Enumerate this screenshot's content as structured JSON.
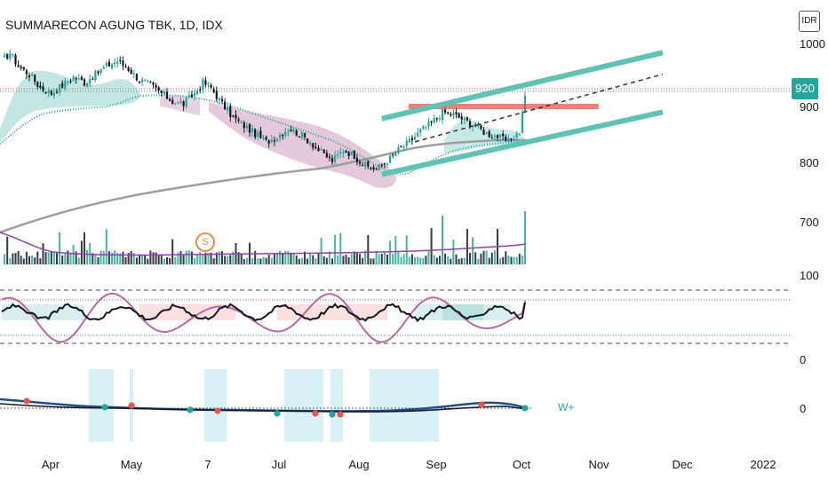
{
  "header": {
    "title": "SUMMARECON AGUNG TBK, 1D, IDX",
    "currency": "IDR"
  },
  "price_axis": {
    "labels": [
      "1000",
      "900",
      "800",
      "700"
    ],
    "last_price": "920"
  },
  "indicator_axes": {
    "volume_label": "100",
    "oscillator_label": "0",
    "lower_label": "0"
  },
  "markers": {
    "s_badge": "S",
    "signal_text": "W+"
  },
  "chart_data": {
    "type": "candlestick",
    "title": "SUMMARECON AGUNG TBK, 1D, IDX",
    "x_tick_labels": [
      "Apr",
      "May",
      "7",
      "Jul",
      "Aug",
      "Sep",
      "Oct",
      "Nov",
      "Dec",
      "2022"
    ],
    "y_tick_labels": [
      "1000",
      "900",
      "800",
      "700"
    ],
    "ylim": [
      710,
      1035
    ],
    "last_price": 920,
    "close_path": [
      [
        0,
        985
      ],
      [
        3,
        1000
      ],
      [
        6,
        975
      ],
      [
        10,
        960
      ],
      [
        14,
        935
      ],
      [
        18,
        925
      ],
      [
        22,
        940
      ],
      [
        26,
        955
      ],
      [
        30,
        945
      ],
      [
        34,
        960
      ],
      [
        38,
        975
      ],
      [
        42,
        985
      ],
      [
        46,
        970
      ],
      [
        50,
        950
      ],
      [
        54,
        940
      ],
      [
        58,
        925
      ],
      [
        62,
        910
      ],
      [
        66,
        905
      ],
      [
        70,
        925
      ],
      [
        73,
        945
      ],
      [
        76,
        935
      ],
      [
        80,
        905
      ],
      [
        84,
        880
      ],
      [
        88,
        865
      ],
      [
        92,
        850
      ],
      [
        96,
        835
      ],
      [
        100,
        845
      ],
      [
        104,
        860
      ],
      [
        108,
        850
      ],
      [
        112,
        835
      ],
      [
        116,
        815
      ],
      [
        120,
        800
      ],
      [
        124,
        820
      ],
      [
        128,
        810
      ],
      [
        132,
        790
      ],
      [
        136,
        785
      ],
      [
        140,
        800
      ],
      [
        144,
        820
      ],
      [
        148,
        835
      ],
      [
        152,
        855
      ],
      [
        156,
        870
      ],
      [
        160,
        890
      ],
      [
        164,
        885
      ],
      [
        168,
        875
      ],
      [
        172,
        865
      ],
      [
        176,
        850
      ],
      [
        180,
        845
      ],
      [
        184,
        835
      ],
      [
        188,
        855
      ],
      [
        190,
        920
      ]
    ],
    "resistance_level": 895,
    "channel_upper": [
      [
        138,
        878
      ],
      [
        240,
        1000
      ]
    ],
    "channel_lower": [
      [
        138,
        775
      ],
      [
        240,
        890
      ]
    ],
    "channel_mid": [
      [
        150,
        835
      ],
      [
        240,
        960
      ]
    ],
    "series": [
      {
        "name": "Volume"
      },
      {
        "name": "Stochastic RSI"
      },
      {
        "name": "Momentum"
      }
    ],
    "grid": false
  }
}
